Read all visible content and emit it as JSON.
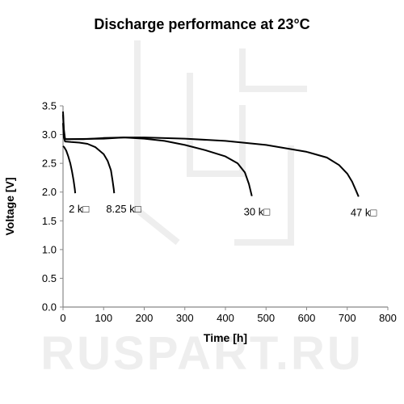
{
  "chart_data": {
    "type": "line",
    "title": "Discharge performance at 23°C",
    "xlabel": "Time [h]",
    "ylabel": "Voltage [V]",
    "xlim": [
      0,
      800
    ],
    "ylim": [
      0,
      3.5
    ],
    "xticks": [
      "0",
      "100",
      "200",
      "300",
      "400",
      "500",
      "600",
      "700",
      "800"
    ],
    "yticks": [
      "0.0",
      "0.5",
      "1.0",
      "1.5",
      "2.0",
      "2.5",
      "3.0",
      "3.5"
    ],
    "grid": false,
    "legend": "none",
    "series": [
      {
        "name": "2 k",
        "label": "2 k□",
        "points": [
          [
            0,
            2.8
          ],
          [
            3,
            2.78
          ],
          [
            8,
            2.72
          ],
          [
            13,
            2.62
          ],
          [
            18,
            2.5
          ],
          [
            22,
            2.36
          ],
          [
            26,
            2.2
          ],
          [
            29,
            2.05
          ],
          [
            30,
            1.98
          ]
        ]
      },
      {
        "name": "8.25 k",
        "label": "8.25 k□",
        "points": [
          [
            0,
            3.2
          ],
          [
            2,
            2.95
          ],
          [
            5,
            2.88
          ],
          [
            20,
            2.87
          ],
          [
            40,
            2.86
          ],
          [
            60,
            2.84
          ],
          [
            80,
            2.78
          ],
          [
            100,
            2.66
          ],
          [
            110,
            2.54
          ],
          [
            118,
            2.38
          ],
          [
            122,
            2.2
          ],
          [
            125,
            2.05
          ],
          [
            126,
            1.98
          ]
        ]
      },
      {
        "name": "30 k",
        "label": "30 k□",
        "points": [
          [
            0,
            3.35
          ],
          [
            2,
            3.05
          ],
          [
            5,
            2.92
          ],
          [
            50,
            2.92
          ],
          [
            100,
            2.94
          ],
          [
            150,
            2.95
          ],
          [
            200,
            2.93
          ],
          [
            250,
            2.89
          ],
          [
            300,
            2.82
          ],
          [
            350,
            2.73
          ],
          [
            400,
            2.62
          ],
          [
            430,
            2.5
          ],
          [
            448,
            2.34
          ],
          [
            458,
            2.14
          ],
          [
            465,
            1.93
          ]
        ]
      },
      {
        "name": "47 k",
        "label": "47 k□",
        "points": [
          [
            0,
            3.4
          ],
          [
            2,
            3.1
          ],
          [
            5,
            2.92
          ],
          [
            100,
            2.93
          ],
          [
            150,
            2.95
          ],
          [
            200,
            2.95
          ],
          [
            300,
            2.93
          ],
          [
            400,
            2.89
          ],
          [
            500,
            2.82
          ],
          [
            600,
            2.7
          ],
          [
            650,
            2.6
          ],
          [
            680,
            2.47
          ],
          [
            700,
            2.32
          ],
          [
            712,
            2.18
          ],
          [
            722,
            2.02
          ],
          [
            728,
            1.92
          ]
        ]
      }
    ]
  },
  "watermark": {
    "text": "RUSPART.RU"
  },
  "colors": {
    "line": "#000000",
    "axis": "#888888",
    "watermark": "#eeeeee"
  }
}
